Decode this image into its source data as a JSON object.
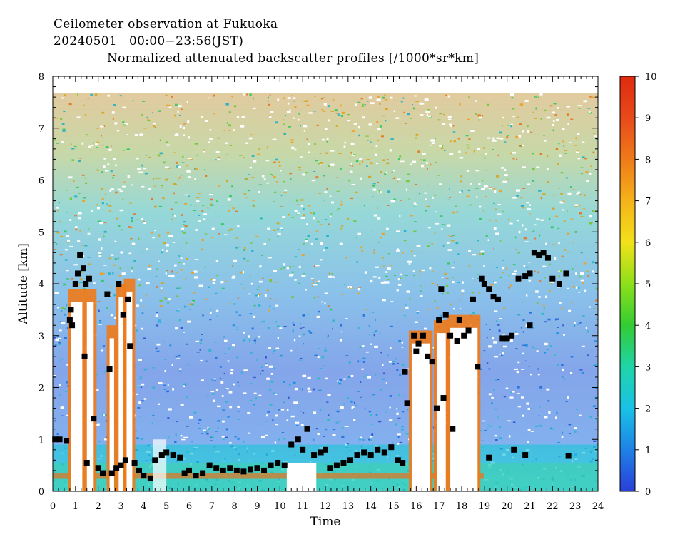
{
  "header": {
    "line1": "Ceilometer observation at Fukuoka",
    "line2": "20240501   00:00−23:56(JST)",
    "line3": "Normalized attenuated backscatter profiles [/1000*sr*km]"
  },
  "chart_data": {
    "type": "heatmap",
    "xlabel": "Time",
    "ylabel": "Altitude [km]",
    "xlim": [
      0,
      24
    ],
    "ylim": [
      0,
      8
    ],
    "x_ticks": [
      "0",
      "1",
      "2",
      "3",
      "4",
      "5",
      "6",
      "7",
      "8",
      "9",
      "10",
      "11",
      "12",
      "13",
      "14",
      "15",
      "16",
      "17",
      "18",
      "19",
      "20",
      "21",
      "22",
      "23",
      "24"
    ],
    "y_ticks": [
      "0",
      "1",
      "2",
      "3",
      "4",
      "5",
      "6",
      "7",
      "8"
    ],
    "colorbar": {
      "range": [
        0,
        10
      ],
      "ticks": [
        "0",
        "1",
        "2",
        "3",
        "4",
        "5",
        "6",
        "7",
        "8",
        "9",
        "10"
      ],
      "colors": [
        "#2a3fd8",
        "#1e82e6",
        "#19c2e6",
        "#1fd4a8",
        "#33cc33",
        "#8ee01a",
        "#f2e11a",
        "#f5b21a",
        "#f07a1a",
        "#e84a1a",
        "#e02a10"
      ]
    },
    "cloud_base_markers": {
      "description_hidden": true,
      "points": [
        [
          0.1,
          1.0
        ],
        [
          0.3,
          1.0
        ],
        [
          0.6,
          0.97
        ],
        [
          0.75,
          3.3
        ],
        [
          0.8,
          3.5
        ],
        [
          0.85,
          3.2
        ],
        [
          1.0,
          4.0
        ],
        [
          1.1,
          4.2
        ],
        [
          1.2,
          4.55
        ],
        [
          1.35,
          4.3
        ],
        [
          1.45,
          4.0
        ],
        [
          1.6,
          4.1
        ],
        [
          1.8,
          1.4
        ],
        [
          1.4,
          2.6
        ],
        [
          1.5,
          0.55
        ],
        [
          2.0,
          0.45
        ],
        [
          2.2,
          0.35
        ],
        [
          2.4,
          3.8
        ],
        [
          2.5,
          2.35
        ],
        [
          2.6,
          0.35
        ],
        [
          2.8,
          0.45
        ],
        [
          2.9,
          4.0
        ],
        [
          3.0,
          0.5
        ],
        [
          3.1,
          3.4
        ],
        [
          3.2,
          0.6
        ],
        [
          3.3,
          3.7
        ],
        [
          3.4,
          2.8
        ],
        [
          3.6,
          0.55
        ],
        [
          3.8,
          0.4
        ],
        [
          4.0,
          0.3
        ],
        [
          4.3,
          0.25
        ],
        [
          4.5,
          0.6
        ],
        [
          4.8,
          0.7
        ],
        [
          5.0,
          0.75
        ],
        [
          5.3,
          0.7
        ],
        [
          5.6,
          0.65
        ],
        [
          5.8,
          0.35
        ],
        [
          6.0,
          0.4
        ],
        [
          6.3,
          0.3
        ],
        [
          6.6,
          0.35
        ],
        [
          6.9,
          0.5
        ],
        [
          7.2,
          0.45
        ],
        [
          7.5,
          0.4
        ],
        [
          7.8,
          0.45
        ],
        [
          8.1,
          0.4
        ],
        [
          8.4,
          0.38
        ],
        [
          8.7,
          0.42
        ],
        [
          9.0,
          0.45
        ],
        [
          9.3,
          0.4
        ],
        [
          9.6,
          0.5
        ],
        [
          9.9,
          0.55
        ],
        [
          10.2,
          0.5
        ],
        [
          10.5,
          0.9
        ],
        [
          10.8,
          1.0
        ],
        [
          11.0,
          0.8
        ],
        [
          11.2,
          1.2
        ],
        [
          11.5,
          0.7
        ],
        [
          11.8,
          0.75
        ],
        [
          12.0,
          0.8
        ],
        [
          12.2,
          0.45
        ],
        [
          12.5,
          0.5
        ],
        [
          12.8,
          0.55
        ],
        [
          13.1,
          0.6
        ],
        [
          13.4,
          0.7
        ],
        [
          13.7,
          0.75
        ],
        [
          14.0,
          0.7
        ],
        [
          14.3,
          0.8
        ],
        [
          14.6,
          0.75
        ],
        [
          14.9,
          0.85
        ],
        [
          15.2,
          0.6
        ],
        [
          15.4,
          0.55
        ],
        [
          15.5,
          2.3
        ],
        [
          15.6,
          1.7
        ],
        [
          15.9,
          3.0
        ],
        [
          16.0,
          2.7
        ],
        [
          16.1,
          2.85
        ],
        [
          16.3,
          3.0
        ],
        [
          16.5,
          2.6
        ],
        [
          16.7,
          2.5
        ],
        [
          16.9,
          1.6
        ],
        [
          17.0,
          3.3
        ],
        [
          17.1,
          3.9
        ],
        [
          17.2,
          1.8
        ],
        [
          17.3,
          3.4
        ],
        [
          17.5,
          3.0
        ],
        [
          17.6,
          1.2
        ],
        [
          17.8,
          2.9
        ],
        [
          17.9,
          3.3
        ],
        [
          18.1,
          3.0
        ],
        [
          18.3,
          3.1
        ],
        [
          18.5,
          3.7
        ],
        [
          18.7,
          2.4
        ],
        [
          18.9,
          4.1
        ],
        [
          19.0,
          4.0
        ],
        [
          19.2,
          3.9
        ],
        [
          19.4,
          3.75
        ],
        [
          19.6,
          3.7
        ],
        [
          19.8,
          2.95
        ],
        [
          20.0,
          2.95
        ],
        [
          20.2,
          3.0
        ],
        [
          20.5,
          4.1
        ],
        [
          20.8,
          4.15
        ],
        [
          21.0,
          4.2
        ],
        [
          21.2,
          4.6
        ],
        [
          21.4,
          4.55
        ],
        [
          21.6,
          4.6
        ],
        [
          21.8,
          4.5
        ],
        [
          22.0,
          4.1
        ],
        [
          22.3,
          4.0
        ],
        [
          22.6,
          4.2
        ],
        [
          19.2,
          0.65
        ],
        [
          20.3,
          0.8
        ],
        [
          20.8,
          0.7
        ],
        [
          22.7,
          0.68
        ],
        [
          21.0,
          3.2
        ]
      ]
    }
  }
}
